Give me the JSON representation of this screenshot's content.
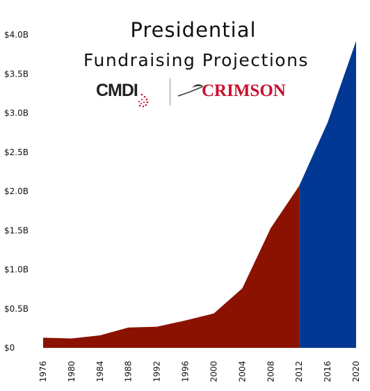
{
  "title": "Presidential",
  "subtitle": "Fundraising Projections",
  "logos": {
    "left": "CMDI",
    "right": "CRIMSON"
  },
  "colors": {
    "historical": "#8b1200",
    "projected": "#003893",
    "text": "#111111",
    "logo_red": "#c8102e"
  },
  "chart_data": {
    "type": "area",
    "x": [
      1976,
      1980,
      1984,
      1988,
      1992,
      1996,
      2000,
      2004,
      2008,
      2012,
      2016,
      2020
    ],
    "xticks": [
      "1976",
      "1980",
      "1984",
      "1988",
      "1992",
      "1996",
      "2000",
      "2004",
      "2008",
      "2012",
      "2016",
      "2020"
    ],
    "series": [
      {
        "segment": "historical",
        "x": [
          1976,
          1980,
          1984,
          1988,
          1992,
          1996,
          2000,
          2004,
          2008,
          2012
        ],
        "values": [
          0.13,
          0.12,
          0.16,
          0.26,
          0.27,
          0.35,
          0.44,
          0.76,
          1.53,
          2.07
        ],
        "color": "#8b1200"
      },
      {
        "segment": "projected",
        "x": [
          2012,
          2016,
          2020
        ],
        "values": [
          2.07,
          2.88,
          3.92
        ],
        "color": "#003893"
      }
    ],
    "yticks": [
      "$0",
      "$0.5B",
      "$1.0B",
      "$1.5B",
      "$2.0B",
      "$2.5B",
      "$3.0B",
      "$3.5B",
      "$4.0B"
    ],
    "ytick_values": [
      0,
      0.5,
      1.0,
      1.5,
      2.0,
      2.5,
      3.0,
      3.5,
      4.0
    ],
    "ylim": [
      0,
      4.0
    ],
    "xlim": [
      1976,
      2020
    ],
    "grid": false
  }
}
